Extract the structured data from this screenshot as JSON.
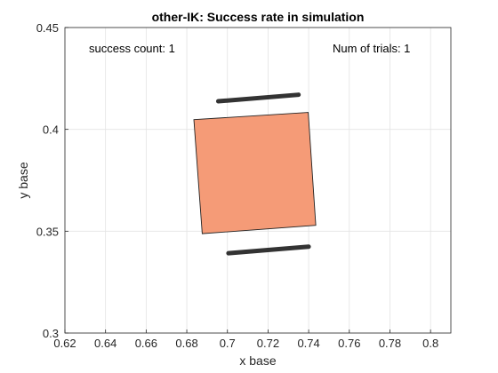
{
  "chart_data": {
    "type": "scatter",
    "title": "other-IK: Success rate in simulation",
    "xlabel": "x base",
    "ylabel": "y base",
    "xlim": [
      0.62,
      0.81
    ],
    "ylim": [
      0.3,
      0.45
    ],
    "x_ticks": [
      "0.62",
      "0.64",
      "0.66",
      "0.68",
      "0.7",
      "0.72",
      "0.74",
      "0.76",
      "0.78",
      "0.8"
    ],
    "y_ticks": [
      "0.3",
      "0.35",
      "0.4",
      "0.45"
    ],
    "grid": true,
    "annotations": {
      "success_count": "success count: 1",
      "num_trials": "Num of trials: 1"
    },
    "object": {
      "shape": "rotated square",
      "color": "#f59b77",
      "corners": [
        [
          0.6835,
          0.4048
        ],
        [
          0.7398,
          0.4083
        ],
        [
          0.7435,
          0.3529
        ],
        [
          0.6876,
          0.3488
        ]
      ]
    },
    "gripper_fingers": {
      "color": "#333333",
      "segments": [
        [
          [
            0.6955,
            0.4138
          ],
          [
            0.735,
            0.417
          ]
        ],
        [
          [
            0.7005,
            0.3392
          ],
          [
            0.74,
            0.3424
          ]
        ]
      ]
    }
  }
}
